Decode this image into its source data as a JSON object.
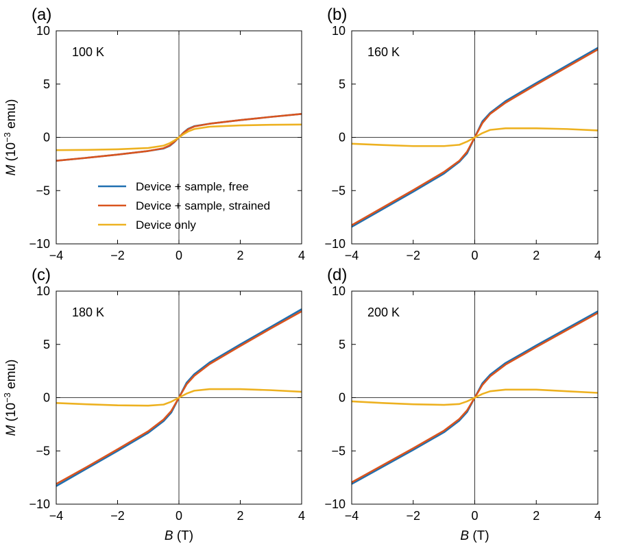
{
  "figure": {
    "ylabel_var": "M",
    "ylabel_unit_pre": " (10",
    "ylabel_exp": "−3",
    "ylabel_unit_post": " emu)",
    "xlabel_var": "B",
    "xlabel_unit": " (T)"
  },
  "legend": [
    {
      "label": "Device + sample, free",
      "color": "#1f6fb0"
    },
    {
      "label": "Device + sample, strained",
      "color": "#d9541e"
    },
    {
      "label": "Device only",
      "color": "#edb120"
    }
  ],
  "chart_data": [
    {
      "type": "line",
      "panel": "(a)",
      "annotation": "100 K",
      "xlim": [
        -4,
        4
      ],
      "ylim": [
        -10,
        10
      ],
      "xticks": [
        "−4",
        "−2",
        "0",
        "2",
        "4"
      ],
      "yticks": [
        "−10",
        "−5",
        "0",
        "5",
        "10"
      ],
      "series": [
        {
          "name": "Device + sample, free",
          "color": "#1f6fb0",
          "x": [
            -4,
            -3,
            -2,
            -1,
            -0.5,
            -0.3,
            -0.15,
            0,
            0.15,
            0.3,
            0.5,
            1,
            2,
            3,
            4
          ],
          "y": [
            -2.2,
            -1.92,
            -1.62,
            -1.28,
            -1.05,
            -0.8,
            -0.45,
            0,
            0.45,
            0.8,
            1.05,
            1.28,
            1.62,
            1.92,
            2.2
          ]
        },
        {
          "name": "Device + sample, strained",
          "color": "#d9541e",
          "x": [
            -4,
            -3,
            -2,
            -1,
            -0.5,
            -0.3,
            -0.15,
            0,
            0.15,
            0.3,
            0.5,
            1,
            2,
            3,
            4
          ],
          "y": [
            -2.2,
            -1.92,
            -1.62,
            -1.28,
            -1.02,
            -0.76,
            -0.42,
            0,
            0.42,
            0.76,
            1.02,
            1.28,
            1.62,
            1.92,
            2.2
          ]
        },
        {
          "name": "Device only",
          "color": "#edb120",
          "x": [
            -4,
            -3,
            -2,
            -1,
            -0.5,
            -0.3,
            -0.15,
            0,
            0.15,
            0.3,
            0.5,
            1,
            2,
            3,
            4
          ],
          "y": [
            -1.2,
            -1.18,
            -1.12,
            -1.0,
            -0.78,
            -0.55,
            -0.3,
            0,
            0.3,
            0.55,
            0.78,
            1.0,
            1.12,
            1.18,
            1.2
          ]
        }
      ]
    },
    {
      "type": "line",
      "panel": "(b)",
      "annotation": "160 K",
      "xlim": [
        -4,
        4
      ],
      "ylim": [
        -10,
        10
      ],
      "xticks": [
        "−4",
        "−2",
        "0",
        "2",
        "4"
      ],
      "yticks": [
        "−10",
        "−5",
        "0",
        "5",
        "10"
      ],
      "series": [
        {
          "name": "Device + sample, free",
          "color": "#1f6fb0",
          "x": [
            -4,
            -3,
            -2,
            -1,
            -0.5,
            -0.25,
            0,
            0.25,
            0.5,
            1,
            2,
            3,
            4
          ],
          "y": [
            -8.4,
            -6.75,
            -5.1,
            -3.4,
            -2.3,
            -1.5,
            0,
            1.5,
            2.3,
            3.4,
            5.1,
            6.75,
            8.4
          ]
        },
        {
          "name": "Device + sample, strained",
          "color": "#d9541e",
          "x": [
            -4,
            -3,
            -2,
            -1,
            -0.5,
            -0.25,
            0,
            0.25,
            0.5,
            1,
            2,
            3,
            4
          ],
          "y": [
            -8.25,
            -6.6,
            -4.95,
            -3.25,
            -2.2,
            -1.35,
            0,
            1.35,
            2.2,
            3.25,
            4.95,
            6.6,
            8.25
          ]
        },
        {
          "name": "Device only",
          "color": "#edb120",
          "x": [
            -4,
            -3,
            -2,
            -1,
            -0.5,
            -0.25,
            0,
            0.25,
            0.5,
            1,
            2,
            3,
            4
          ],
          "y": [
            -0.6,
            -0.72,
            -0.82,
            -0.82,
            -0.7,
            -0.4,
            0,
            0.4,
            0.7,
            0.85,
            0.85,
            0.78,
            0.65
          ]
        }
      ]
    },
    {
      "type": "line",
      "panel": "(c)",
      "annotation": "180 K",
      "xlim": [
        -4,
        4
      ],
      "ylim": [
        -10,
        10
      ],
      "xticks": [
        "−4",
        "−2",
        "0",
        "2",
        "4"
      ],
      "yticks": [
        "−10",
        "−5",
        "0",
        "5",
        "10"
      ],
      "series": [
        {
          "name": "Device + sample, free",
          "color": "#1f6fb0",
          "x": [
            -4,
            -3,
            -2,
            -1,
            -0.5,
            -0.25,
            0,
            0.25,
            0.5,
            1,
            2,
            3,
            4
          ],
          "y": [
            -8.3,
            -6.65,
            -5.0,
            -3.3,
            -2.2,
            -1.4,
            0,
            1.4,
            2.2,
            3.3,
            5.0,
            6.65,
            8.3
          ]
        },
        {
          "name": "Device + sample, strained",
          "color": "#d9541e",
          "x": [
            -4,
            -3,
            -2,
            -1,
            -0.5,
            -0.25,
            0,
            0.25,
            0.5,
            1,
            2,
            3,
            4
          ],
          "y": [
            -8.1,
            -6.5,
            -4.85,
            -3.15,
            -2.05,
            -1.25,
            0,
            1.25,
            2.05,
            3.15,
            4.85,
            6.5,
            8.1
          ]
        },
        {
          "name": "Device only",
          "color": "#edb120",
          "x": [
            -4,
            -3,
            -2,
            -1,
            -0.5,
            -0.25,
            0,
            0.25,
            0.5,
            1,
            2,
            3,
            4
          ],
          "y": [
            -0.5,
            -0.62,
            -0.72,
            -0.75,
            -0.65,
            -0.38,
            0,
            0.38,
            0.65,
            0.8,
            0.8,
            0.7,
            0.55
          ]
        }
      ]
    },
    {
      "type": "line",
      "panel": "(d)",
      "annotation": "200 K",
      "xlim": [
        -4,
        4
      ],
      "ylim": [
        -10,
        10
      ],
      "xticks": [
        "−4",
        "−2",
        "0",
        "2",
        "4"
      ],
      "yticks": [
        "−10",
        "−5",
        "0",
        "5",
        "10"
      ],
      "series": [
        {
          "name": "Device + sample, free",
          "color": "#1f6fb0",
          "x": [
            -4,
            -3,
            -2,
            -1,
            -0.5,
            -0.25,
            0,
            0.25,
            0.5,
            1,
            2,
            3,
            4
          ],
          "y": [
            -8.1,
            -6.5,
            -4.9,
            -3.25,
            -2.15,
            -1.35,
            0,
            1.35,
            2.15,
            3.25,
            4.9,
            6.5,
            8.1
          ]
        },
        {
          "name": "Device + sample, strained",
          "color": "#d9541e",
          "x": [
            -4,
            -3,
            -2,
            -1,
            -0.5,
            -0.25,
            0,
            0.25,
            0.5,
            1,
            2,
            3,
            4
          ],
          "y": [
            -7.95,
            -6.35,
            -4.75,
            -3.1,
            -2.0,
            -1.2,
            0,
            1.2,
            2.0,
            3.1,
            4.75,
            6.35,
            7.95
          ]
        },
        {
          "name": "Device only",
          "color": "#edb120",
          "x": [
            -4,
            -3,
            -2,
            -1,
            -0.5,
            -0.25,
            0,
            0.25,
            0.5,
            1,
            2,
            3,
            4
          ],
          "y": [
            -0.35,
            -0.5,
            -0.62,
            -0.68,
            -0.6,
            -0.35,
            0,
            0.35,
            0.6,
            0.75,
            0.75,
            0.6,
            0.45
          ]
        }
      ]
    }
  ]
}
